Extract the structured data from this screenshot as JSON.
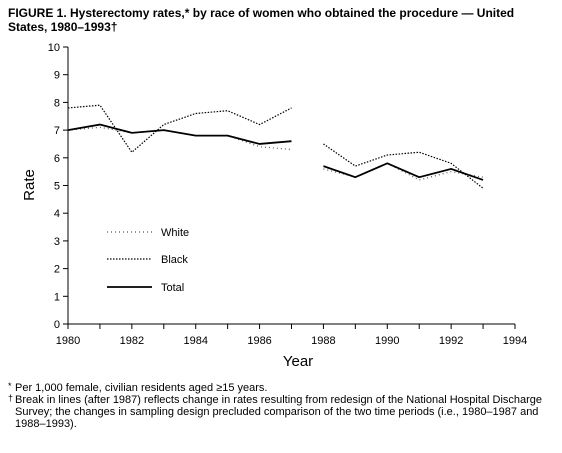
{
  "title": "FIGURE 1. Hysterectomy rates,* by race of women who obtained the procedure — United States, 1980–1993†",
  "chart_data": {
    "type": "line",
    "title": "FIGURE 1. Hysterectomy rates,* by race of women who obtained the procedure — United States, 1980–1993†",
    "xlabel": "Year",
    "ylabel": "Rate",
    "xlim": [
      1980,
      1994
    ],
    "ylim": [
      0,
      10
    ],
    "x_ticks": [
      1980,
      1982,
      1984,
      1986,
      1988,
      1990,
      1992,
      1994
    ],
    "y_ticks": [
      0,
      1,
      2,
      3,
      4,
      5,
      6,
      7,
      8,
      9,
      10
    ],
    "legend_position": "left",
    "segments": [
      [
        1980,
        1987
      ],
      [
        1988,
        1993
      ]
    ],
    "x": [
      1980,
      1981,
      1982,
      1983,
      1984,
      1985,
      1986,
      1987,
      1988,
      1989,
      1990,
      1991,
      1992,
      1993
    ],
    "series": [
      {
        "name": "White",
        "style": "sparse-dotted",
        "values": [
          7.0,
          7.1,
          6.9,
          7.0,
          6.8,
          6.8,
          6.4,
          6.3,
          5.6,
          5.3,
          5.8,
          5.2,
          5.5,
          5.3
        ]
      },
      {
        "name": "Black",
        "style": "dotted",
        "values": [
          7.8,
          7.9,
          6.2,
          7.2,
          7.6,
          7.7,
          7.2,
          7.8,
          6.5,
          5.7,
          6.1,
          6.2,
          5.8,
          4.9
        ]
      },
      {
        "name": "Total",
        "style": "solid",
        "values": [
          7.0,
          7.2,
          6.9,
          7.0,
          6.8,
          6.8,
          6.5,
          6.6,
          5.7,
          5.3,
          5.8,
          5.3,
          5.6,
          5.2
        ]
      }
    ]
  },
  "footnotes": [
    {
      "mark": "*",
      "text": "Per 1,000 female, civilian residents aged ≥15 years."
    },
    {
      "mark": "†",
      "text": "Break in lines (after 1987) reflects change in rates resulting from redesign of the National Hospital Discharge Survey; the changes in sampling design precluded comparison of the two time periods (i.e., 1980–1987 and 1988–1993)."
    }
  ]
}
